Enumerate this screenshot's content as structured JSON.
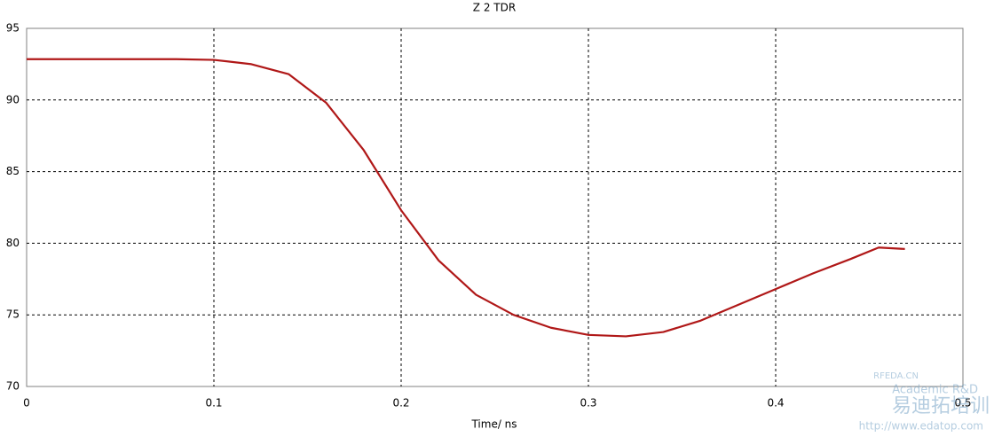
{
  "chart_data": {
    "type": "line",
    "title": "Z 2 TDR",
    "xlabel": "Time/ ns",
    "x": [
      0,
      0.02,
      0.04,
      0.06,
      0.08,
      0.1,
      0.12,
      0.14,
      0.16,
      0.18,
      0.2,
      0.22,
      0.24,
      0.26,
      0.28,
      0.3,
      0.32,
      0.34,
      0.36,
      0.38,
      0.4,
      0.42,
      0.44,
      0.455,
      0.469
    ],
    "series": [
      {
        "name": "Z 2",
        "color": "#b01818",
        "values": [
          92.85,
          92.85,
          92.85,
          92.85,
          92.85,
          92.8,
          92.5,
          91.8,
          89.8,
          86.5,
          82.3,
          78.8,
          76.4,
          75.0,
          74.1,
          73.6,
          73.5,
          73.8,
          74.6,
          75.7,
          76.8,
          77.9,
          78.9,
          79.7,
          79.6
        ]
      }
    ],
    "xlim": [
      0,
      0.5
    ],
    "xticks": [
      0,
      0.1,
      0.2,
      0.3,
      0.4,
      0.5
    ],
    "ylim": [
      70,
      95
    ],
    "yticks": [
      70,
      75,
      80,
      85,
      90,
      95
    ],
    "grid": true,
    "watermark": [
      "RFEDA.CN",
      "Academic R&D",
      "易迪拓培训",
      "http://www.edatop.com"
    ]
  }
}
